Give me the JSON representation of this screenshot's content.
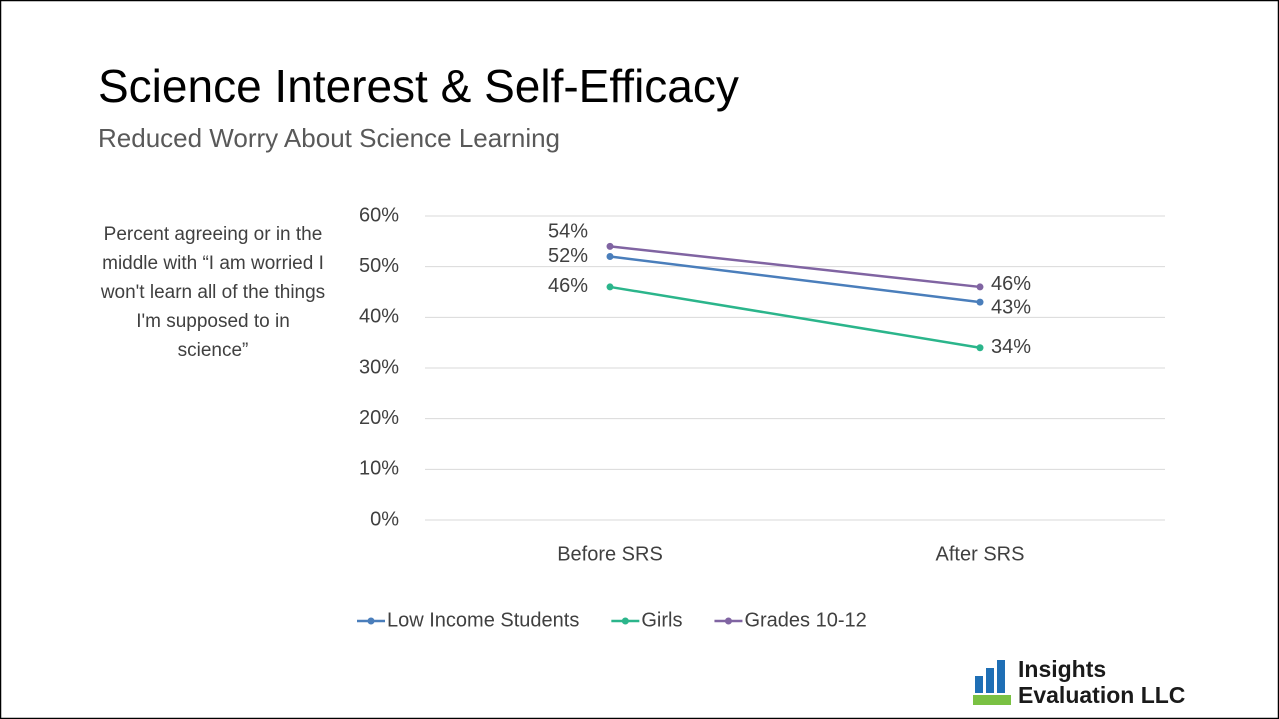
{
  "title": "Science Interest & Self-Efficacy",
  "subtitle": "Reduced Worry About Science Learning",
  "logo": {
    "line1": "Insights",
    "line2": "Evaluation LLC"
  },
  "chart_data": {
    "type": "line",
    "y_label": "Percent agreeing or in the middle with “I am worried I won't learn all of the things I'm supposed to in science”",
    "categories": [
      "Before SRS",
      "After SRS"
    ],
    "series": [
      {
        "name": "Low Income Students",
        "color": "#4a7ebb",
        "values": [
          52,
          43
        ],
        "value_labels": [
          "52%",
          "43%"
        ]
      },
      {
        "name": "Girls",
        "color": "#2bb58b",
        "values": [
          46,
          34
        ],
        "value_labels": [
          "46%",
          "34%"
        ]
      },
      {
        "name": "Grades 10-12",
        "color": "#8064a2",
        "values": [
          54,
          46
        ],
        "value_labels": [
          "54%",
          "46%"
        ]
      }
    ],
    "ylim": [
      0,
      60
    ],
    "yticks": [
      {
        "value": 0,
        "label": "0%"
      },
      {
        "value": 10,
        "label": "10%"
      },
      {
        "value": 20,
        "label": "20%"
      },
      {
        "value": 30,
        "label": "30%"
      },
      {
        "value": 40,
        "label": "40%"
      },
      {
        "value": 50,
        "label": "50%"
      },
      {
        "value": 60,
        "label": "60%"
      }
    ],
    "grid": true,
    "legend": "bottom"
  }
}
